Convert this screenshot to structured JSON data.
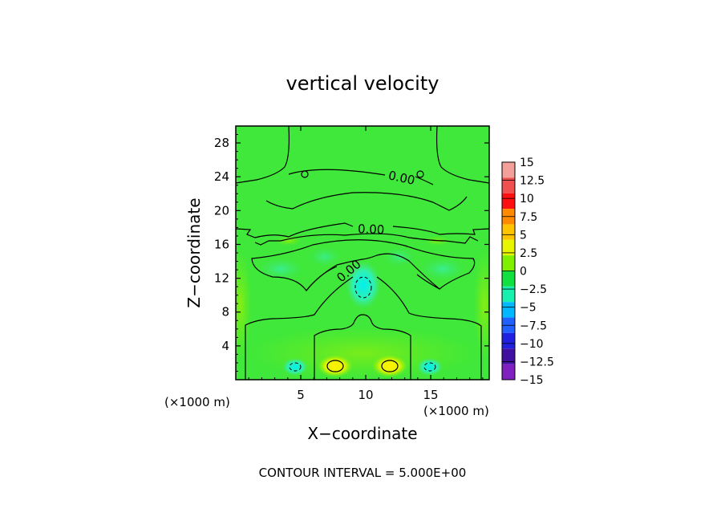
{
  "chart_data": {
    "type": "heatmap",
    "title": "vertical velocity",
    "xlabel": "X−coordinate",
    "ylabel": "Z−coordinate",
    "x_unit_left": "(×1000 m)",
    "x_unit_right": "(×1000 m)",
    "xlim": [
      0,
      19.5
    ],
    "ylim": [
      0,
      30
    ],
    "x_ticks": [
      5,
      10,
      15
    ],
    "y_ticks": [
      4,
      8,
      12,
      16,
      20,
      24,
      28
    ],
    "footer": "CONTOUR INTERVAL = 5.000E+00",
    "contour_labels": [
      {
        "text": "0.00",
        "x": 12.7,
        "y": 23.4
      },
      {
        "text": "0.00",
        "x": 10.4,
        "y": 17.3
      },
      {
        "text": "0.00",
        "x": 8.9,
        "y": 12.5
      }
    ],
    "colorbar": {
      "labels": [
        "15",
        "12.5",
        "10",
        "7.5",
        "5",
        "2.5",
        "0",
        "−2.5",
        "−5",
        "−7.5",
        "−10",
        "−12.5",
        "−15"
      ],
      "values": [
        15,
        12.5,
        10,
        7.5,
        5,
        2.5,
        0,
        -2.5,
        -5,
        -7.5,
        -10,
        -12.5,
        -15
      ],
      "colors": [
        "#f4a09a",
        "#f05050",
        "#ff1010",
        "#ff8a00",
        "#ffc400",
        "#e8f500",
        "#7ef000",
        "#10e040",
        "#18f0b0",
        "#00b8ff",
        "#2060ff",
        "#2020e0",
        "#4010a0",
        "#8020c0"
      ]
    },
    "background_color": "#3fe83a",
    "features": [
      {
        "kind": "updraft",
        "x": 8.0,
        "y": 1.6,
        "value": 5
      },
      {
        "kind": "updraft",
        "x": 12.0,
        "y": 1.6,
        "value": 5
      },
      {
        "kind": "downdraft",
        "x": 4.8,
        "y": 1.6,
        "value": -5
      },
      {
        "kind": "downdraft",
        "x": 15.2,
        "y": 1.6,
        "value": -5
      },
      {
        "kind": "downdraft",
        "x": 10.0,
        "y": 10.8,
        "value": -5
      }
    ]
  }
}
